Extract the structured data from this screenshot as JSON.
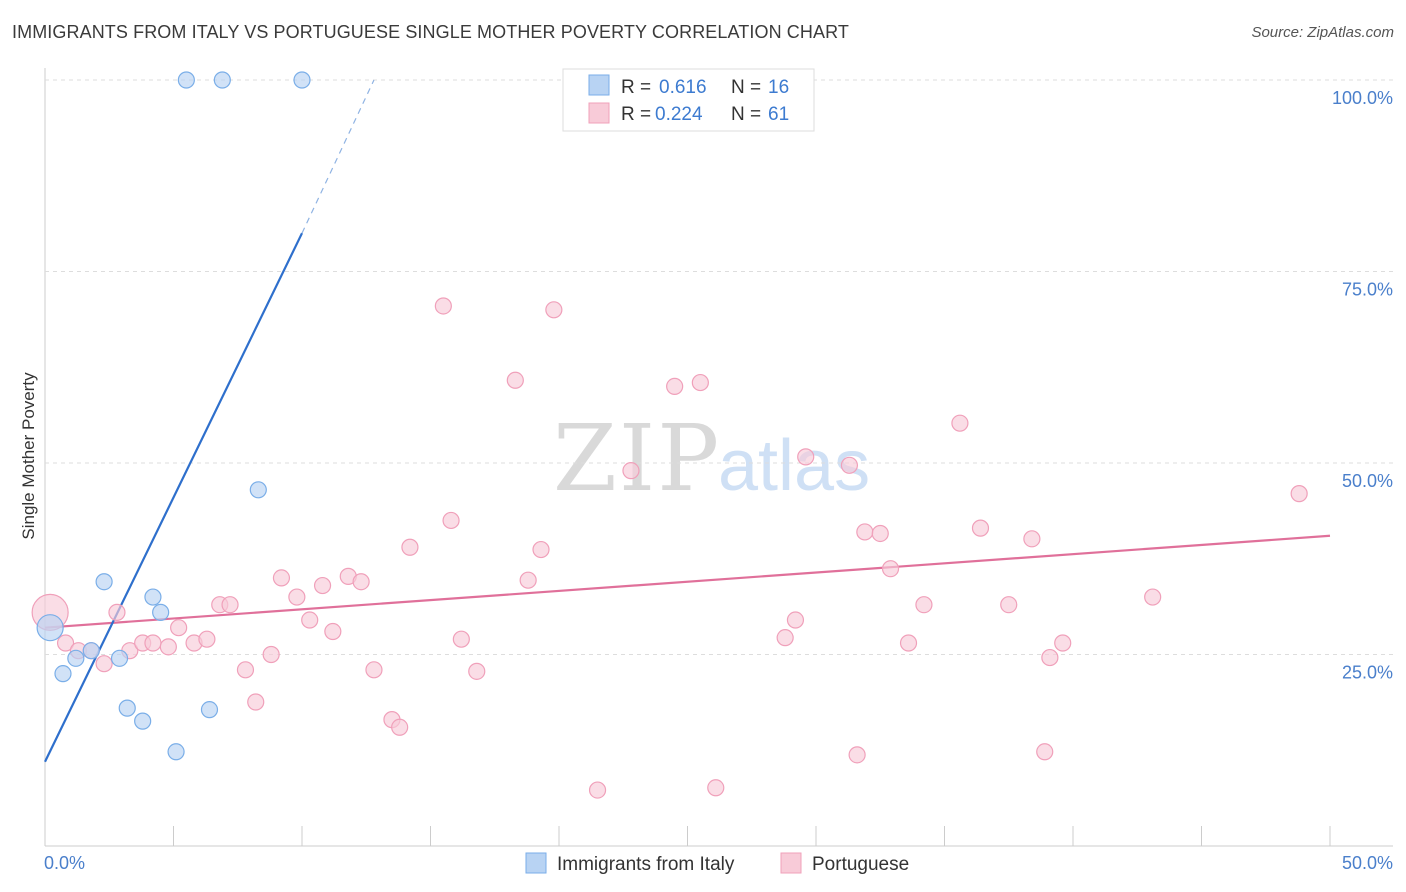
{
  "chart_data": {
    "type": "scatter",
    "title": "IMMIGRANTS FROM ITALY VS PORTUGUESE SINGLE MOTHER POVERTY CORRELATION CHART",
    "source": "Source: ZipAtlas.com",
    "xlabel": "",
    "ylabel": "Single Mother Poverty",
    "xlim": [
      0,
      50
    ],
    "ylim": [
      0,
      100
    ],
    "x_tick_labels": [
      "0.0%",
      "50.0%"
    ],
    "y_ticks": [
      25,
      50,
      75,
      100
    ],
    "y_tick_labels": [
      "25.0%",
      "50.0%",
      "75.0%",
      "100.0%"
    ],
    "watermark": "ZIPatlas",
    "legend": [
      {
        "series": "Immigrants from Italy",
        "r_label": "R =",
        "r": "0.616",
        "n_label": "N =",
        "n": "16"
      },
      {
        "series": "Portuguese",
        "r_label": "R =",
        "r": "0.224",
        "n_label": "N =",
        "n": "61"
      }
    ],
    "series": [
      {
        "name": "Immigrants from Italy",
        "color": "#7aaee8",
        "fill": "#b8d3f3",
        "line_color": "#2e6fcc",
        "trend": {
          "x0": 0,
          "y0": 11,
          "x1": 10,
          "y1": 80,
          "dash_x1": 12.8,
          "dash_y1": 100
        },
        "points": [
          [
            0.2,
            28.5
          ],
          [
            0.7,
            22.5
          ],
          [
            1.2,
            24.5
          ],
          [
            1.8,
            25.5
          ],
          [
            2.3,
            34.5
          ],
          [
            2.9,
            24.5
          ],
          [
            3.2,
            18.0
          ],
          [
            3.8,
            16.3
          ],
          [
            4.2,
            32.5
          ],
          [
            4.5,
            30.5
          ],
          [
            5.1,
            12.3
          ],
          [
            6.4,
            17.8
          ],
          [
            8.3,
            46.5
          ],
          [
            5.5,
            100
          ],
          [
            6.9,
            100
          ],
          [
            10.0,
            100
          ]
        ]
      },
      {
        "name": "Portuguese",
        "color": "#f0a0ba",
        "fill": "#f8cbd8",
        "line_color": "#e0709a",
        "trend": {
          "x0": 0,
          "y0": 28.5,
          "x1": 50,
          "y1": 40.5
        },
        "points": [
          [
            0.2,
            30.5
          ],
          [
            0.8,
            26.5
          ],
          [
            1.3,
            25.5
          ],
          [
            1.8,
            25.5
          ],
          [
            2.3,
            23.8
          ],
          [
            2.8,
            30.5
          ],
          [
            3.3,
            25.5
          ],
          [
            3.8,
            26.5
          ],
          [
            4.2,
            26.5
          ],
          [
            4.8,
            26.0
          ],
          [
            5.2,
            28.5
          ],
          [
            5.8,
            26.5
          ],
          [
            6.3,
            27.0
          ],
          [
            6.8,
            31.5
          ],
          [
            7.2,
            31.5
          ],
          [
            7.8,
            23.0
          ],
          [
            8.2,
            18.8
          ],
          [
            8.8,
            25.0
          ],
          [
            9.2,
            35.0
          ],
          [
            9.8,
            32.5
          ],
          [
            10.3,
            29.5
          ],
          [
            10.8,
            34.0
          ],
          [
            11.2,
            28.0
          ],
          [
            11.8,
            35.2
          ],
          [
            12.3,
            34.5
          ],
          [
            12.8,
            23.0
          ],
          [
            13.5,
            16.5
          ],
          [
            13.8,
            15.5
          ],
          [
            14.2,
            39.0
          ],
          [
            15.5,
            70.5
          ],
          [
            15.8,
            42.5
          ],
          [
            16.2,
            27.0
          ],
          [
            16.8,
            22.8
          ],
          [
            18.3,
            60.8
          ],
          [
            18.8,
            34.7
          ],
          [
            19.3,
            38.7
          ],
          [
            19.8,
            70.0
          ],
          [
            21.5,
            7.3
          ],
          [
            22.8,
            49.0
          ],
          [
            24.5,
            60.0
          ],
          [
            25.5,
            60.5
          ],
          [
            26.1,
            7.6
          ],
          [
            28.8,
            27.2
          ],
          [
            29.2,
            29.5
          ],
          [
            29.6,
            50.8
          ],
          [
            31.3,
            49.7
          ],
          [
            31.6,
            11.9
          ],
          [
            31.9,
            41.0
          ],
          [
            32.5,
            40.8
          ],
          [
            32.9,
            36.2
          ],
          [
            33.6,
            26.5
          ],
          [
            34.2,
            31.5
          ],
          [
            35.6,
            55.2
          ],
          [
            36.4,
            41.5
          ],
          [
            37.5,
            31.5
          ],
          [
            38.4,
            40.1
          ],
          [
            38.9,
            12.3
          ],
          [
            39.1,
            24.6
          ],
          [
            39.6,
            26.5
          ],
          [
            43.1,
            32.5
          ],
          [
            48.8,
            46.0
          ]
        ]
      }
    ]
  }
}
